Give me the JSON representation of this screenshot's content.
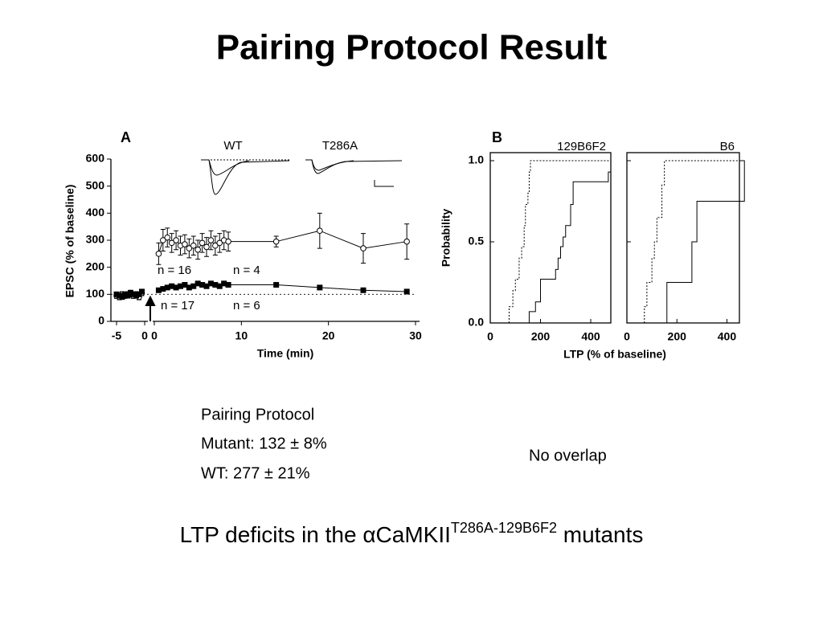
{
  "title": "Pairing Protocol Result",
  "chart_data": [
    {
      "type": "line",
      "panel": "A",
      "y_label": "EPSC (% of baseline)",
      "x_label": "Time (min)",
      "trace_labels": [
        "WT",
        "T286A"
      ],
      "annotations": [
        "n = 16",
        "n = 4",
        "n = 17",
        "n = 6"
      ],
      "xlim_pre": [
        -6,
        0.5
      ],
      "xticks_pre": [
        -5,
        0
      ],
      "xlim": [
        0,
        30
      ],
      "xticks": [
        0,
        10,
        20,
        30
      ],
      "ylim": [
        0,
        600
      ],
      "yticks": [
        0,
        100,
        200,
        300,
        400,
        500,
        600
      ],
      "reference_line": 100,
      "x": [
        -5,
        -4.5,
        -4,
        -3.5,
        -3,
        -2.5,
        -2,
        -1.5,
        -1,
        -0.5,
        0.5,
        1,
        1.5,
        2,
        2.5,
        3,
        3.5,
        4,
        4.5,
        5,
        5.5,
        6,
        6.5,
        7,
        7.5,
        8,
        8.5,
        14,
        19,
        24,
        29
      ],
      "series": [
        {
          "name": "WT",
          "marker": "circle",
          "color": "#000000",
          "values": [
            95,
            90,
            100,
            95,
            100,
            105,
            95,
            100,
            90,
            105,
            250,
            300,
            310,
            290,
            300,
            280,
            285,
            270,
            280,
            265,
            290,
            275,
            300,
            280,
            290,
            300,
            295,
            295,
            335,
            270,
            295
          ],
          "errors": [
            10,
            10,
            10,
            10,
            10,
            10,
            10,
            10,
            10,
            10,
            40,
            40,
            35,
            35,
            35,
            35,
            35,
            35,
            35,
            35,
            35,
            35,
            35,
            35,
            35,
            35,
            35,
            20,
            65,
            55,
            65
          ]
        },
        {
          "name": "T286A",
          "marker": "square",
          "color": "#000000",
          "values": [
            100,
            95,
            90,
            100,
            95,
            105,
            100,
            95,
            100,
            110,
            115,
            120,
            125,
            130,
            125,
            130,
            135,
            125,
            130,
            140,
            135,
            130,
            140,
            135,
            130,
            140,
            135,
            135,
            125,
            115,
            110
          ]
        }
      ]
    },
    {
      "type": "step",
      "panel": "B",
      "subtitle": "129B6F2",
      "y_label": "Probability",
      "x_label": "LTP (% of baseline)",
      "xlim": [
        0,
        480
      ],
      "xticks": [
        0,
        200,
        400
      ],
      "ylim": [
        0,
        1
      ],
      "yticks": [
        {
          "value": 0,
          "label": "0.0"
        },
        {
          "value": 0.5,
          "label": "0.5"
        },
        {
          "value": 1,
          "label": "1.0"
        }
      ],
      "series": [
        {
          "dash": true,
          "color": "#000000",
          "x": [
            75,
            90,
            100,
            115,
            125,
            135,
            140,
            150,
            155,
            160
          ],
          "values": [
            0.1,
            0.2,
            0.27,
            0.4,
            0.47,
            0.6,
            0.73,
            0.8,
            0.93,
            1.0
          ]
        },
        {
          "dash": false,
          "color": "#000000",
          "x": [
            155,
            180,
            200,
            260,
            270,
            280,
            290,
            300,
            320,
            330,
            470,
            480
          ],
          "values": [
            0.07,
            0.13,
            0.27,
            0.33,
            0.4,
            0.47,
            0.53,
            0.6,
            0.73,
            0.87,
            0.93,
            1.0
          ]
        }
      ]
    },
    {
      "type": "step",
      "subtitle": "B6",
      "xlim": [
        0,
        450
      ],
      "xticks": [
        0,
        200,
        400
      ],
      "ylim": [
        0,
        1
      ],
      "yticks": [
        0,
        0.5,
        1
      ],
      "series": [
        {
          "dash": true,
          "color": "#000000",
          "x": [
            70,
            80,
            100,
            110,
            120,
            140,
            150
          ],
          "values": [
            0.1,
            0.25,
            0.4,
            0.5,
            0.65,
            0.85,
            1.0
          ]
        },
        {
          "dash": false,
          "color": "#000000",
          "x": [
            160,
            260,
            280,
            470
          ],
          "values": [
            0.25,
            0.5,
            0.75,
            1.0
          ]
        }
      ]
    }
  ],
  "notes": [
    "Pairing Protocol",
    "Mutant: 132 ± 8%",
    "WT: 277 ± 21%"
  ],
  "side_note": "No overlap",
  "caption": {
    "text": "LTP deficits in the αCaMKII",
    "superscript": "T286A-129B6F2",
    "tail": " mutants"
  }
}
